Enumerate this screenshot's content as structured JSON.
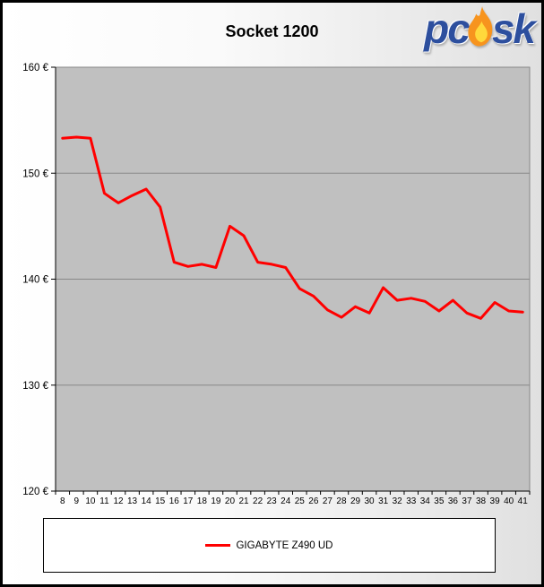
{
  "header": {
    "title": "Socket 1200",
    "logo": {
      "part1": "pc",
      "part2": "sk",
      "text_color": "#2d4f9e",
      "flame_outer_color": "#f7941e",
      "flame_inner_color": "#ffd93b"
    }
  },
  "chart_data": {
    "type": "line",
    "title": "Socket 1200",
    "xlabel": "",
    "ylabel": "",
    "x": [
      8,
      9,
      10,
      11,
      12,
      13,
      14,
      15,
      16,
      17,
      18,
      19,
      20,
      21,
      22,
      23,
      24,
      25,
      26,
      27,
      28,
      29,
      30,
      31,
      32,
      33,
      34,
      35,
      36,
      37,
      38,
      39,
      40,
      41
    ],
    "series": [
      {
        "name": "GIGABYTE Z490 UD",
        "color": "#ff0000",
        "values": [
          153.3,
          153.4,
          153.3,
          148.1,
          147.2,
          147.9,
          148.5,
          146.8,
          141.6,
          141.2,
          141.4,
          141.1,
          145.0,
          144.1,
          141.6,
          141.4,
          141.1,
          139.1,
          138.4,
          137.1,
          136.4,
          137.4,
          136.8,
          139.2,
          138.0,
          138.2,
          137.9,
          137.0,
          138.0,
          136.8,
          136.3,
          137.8,
          137.0,
          136.9
        ]
      }
    ],
    "ylim": [
      120,
      160
    ],
    "yticks": [
      160,
      150,
      140,
      130,
      120
    ],
    "ytick_labels": [
      "160 €",
      "150 €",
      "140 €",
      "130 €",
      "120 €"
    ],
    "grid": true,
    "grid_color": "#878787",
    "plot_bg": "#c0c0c0",
    "axis_color": "#000000",
    "legend_position": "bottom"
  },
  "legend": {
    "entries": [
      {
        "label": "GIGABYTE Z490 UD",
        "color": "#ff0000"
      }
    ]
  }
}
